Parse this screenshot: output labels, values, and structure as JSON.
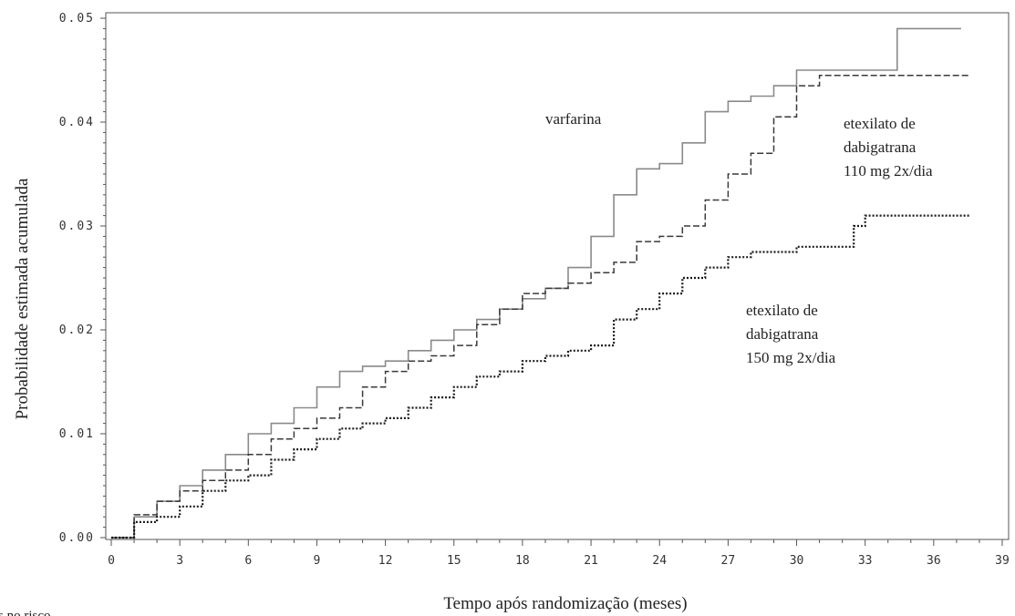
{
  "chart_data": {
    "type": "line",
    "ylabel": "Probabilidade estimada acumulada",
    "xlabel": "Tempo após randomização (meses)",
    "xlim": [
      0,
      39
    ],
    "ylim": [
      0,
      0.05
    ],
    "x_ticks": [
      "0",
      "3",
      "6",
      "9",
      "12",
      "15",
      "18",
      "21",
      "24",
      "27",
      "30",
      "33",
      "36",
      "39"
    ],
    "y_ticks": [
      "0.00",
      "0.01",
      "0.02",
      "0.03",
      "0.04",
      "0.05"
    ],
    "grid": false,
    "legend": "none",
    "annotations": [
      {
        "lines": [
          "varfarina"
        ]
      },
      {
        "lines": [
          "etexilato de",
          "dabigatrana",
          "110 mg 2x/dia"
        ]
      },
      {
        "lines": [
          "etexilato de",
          "dabigatrana",
          "150 mg 2x/dia"
        ]
      }
    ],
    "footnote": "s no risco",
    "series": [
      {
        "style": "solid",
        "color": "#8a8a8a",
        "x": [
          0,
          1,
          2,
          3,
          4,
          5,
          6,
          7,
          8,
          9,
          10,
          11,
          12,
          13,
          14,
          15,
          16,
          17,
          18,
          19,
          20,
          21,
          22,
          23,
          24,
          25,
          26,
          27,
          28,
          29,
          30,
          31,
          32,
          33,
          34,
          34.4,
          37.2
        ],
        "y": [
          0,
          0.002,
          0.0035,
          0.005,
          0.0065,
          0.008,
          0.01,
          0.011,
          0.0125,
          0.0145,
          0.016,
          0.0165,
          0.017,
          0.018,
          0.019,
          0.02,
          0.021,
          0.022,
          0.023,
          0.024,
          0.026,
          0.029,
          0.033,
          0.0355,
          0.036,
          0.038,
          0.041,
          0.042,
          0.0425,
          0.0435,
          0.045,
          0.045,
          0.045,
          0.045,
          0.045,
          0.049,
          0.049
        ]
      },
      {
        "style": "dashed",
        "color": "#3a3a3a",
        "x": [
          0,
          1,
          2,
          3,
          4,
          5,
          6,
          7,
          8,
          9,
          10,
          11,
          12,
          13,
          14,
          15,
          16,
          17,
          18,
          19,
          20,
          21,
          22,
          23,
          24,
          25,
          26,
          27,
          28,
          29,
          30,
          31,
          32,
          33,
          34,
          35,
          36,
          37.6
        ],
        "y": [
          0,
          0.0022,
          0.0035,
          0.0045,
          0.0055,
          0.0065,
          0.008,
          0.0095,
          0.0105,
          0.0115,
          0.0125,
          0.0145,
          0.016,
          0.017,
          0.0175,
          0.0185,
          0.0205,
          0.022,
          0.0235,
          0.024,
          0.0245,
          0.0255,
          0.0265,
          0.0285,
          0.029,
          0.03,
          0.0325,
          0.035,
          0.037,
          0.0405,
          0.0435,
          0.0445,
          0.0445,
          0.0445,
          0.0445,
          0.0445,
          0.0445,
          0.0445
        ]
      },
      {
        "style": "dotted",
        "color": "#1a1a1a",
        "x": [
          0,
          1,
          2,
          3,
          4,
          5,
          6,
          7,
          8,
          9,
          10,
          11,
          12,
          13,
          14,
          15,
          16,
          17,
          18,
          19,
          20,
          21,
          22,
          23,
          24,
          25,
          26,
          27,
          28,
          29,
          30,
          31,
          32,
          32.5,
          33,
          34,
          35,
          36,
          37.6
        ],
        "y": [
          0,
          0.0015,
          0.002,
          0.003,
          0.0045,
          0.0055,
          0.006,
          0.0075,
          0.0085,
          0.0095,
          0.0105,
          0.011,
          0.0115,
          0.0125,
          0.0135,
          0.0145,
          0.0155,
          0.016,
          0.017,
          0.0175,
          0.018,
          0.0185,
          0.021,
          0.022,
          0.0235,
          0.025,
          0.026,
          0.027,
          0.0275,
          0.0275,
          0.028,
          0.028,
          0.028,
          0.03,
          0.031,
          0.031,
          0.031,
          0.031,
          0.031
        ]
      }
    ]
  }
}
